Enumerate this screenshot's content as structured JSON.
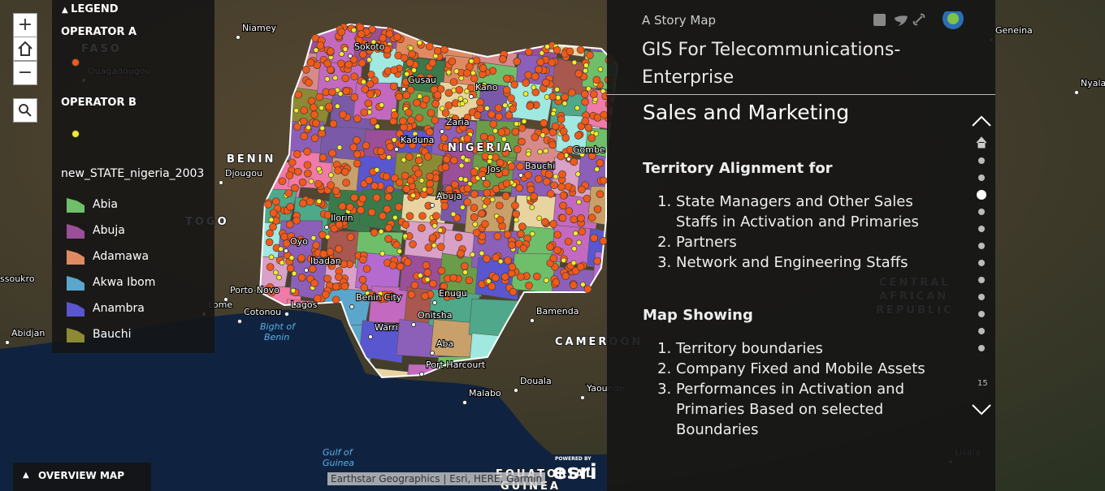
{
  "legend": {
    "header": "LEGEND",
    "operators": [
      {
        "name": "OPERATOR A",
        "color": "#f05a1a"
      },
      {
        "name": "OPERATOR B",
        "color": "#f2ec2a"
      }
    ],
    "layer_name": "new_STATE_nigeria_2003",
    "items": [
      {
        "name": "Abia",
        "color": "#6fbf6a"
      },
      {
        "name": "Abuja",
        "color": "#9a4f98"
      },
      {
        "name": "Adamawa",
        "color": "#e08a62"
      },
      {
        "name": "Akwa Ibom",
        "color": "#5aa6cc"
      },
      {
        "name": "Anambra",
        "color": "#5a56d0"
      },
      {
        "name": "Bauchi",
        "color": "#8c8a34"
      }
    ]
  },
  "map_labels": [
    "Niamey",
    "Sokoto",
    "Gusau",
    "Kano",
    "Zaria",
    "Kaduna",
    "NIGERIA",
    "Gombe",
    "Bauchi",
    "Jos",
    "Abuja",
    "Ilorin",
    "Oyo",
    "Ibadan",
    "Porto-Novo",
    "Cotonou",
    "Lagos",
    "Bight of",
    "Benin",
    "Benin City",
    "Enugu",
    "Onitsha",
    "Warri",
    "Aba",
    "Port Harcourt",
    "Bamenda",
    "CAMEROON",
    "Douala",
    "Yaounde",
    "Malabo",
    "Gulf of",
    "Guinea",
    "BENIN",
    "Djougou",
    "TOGO",
    "Lome",
    "Abidjan",
    "Ouagadougou",
    "FASO",
    "ssoukro",
    "Geneina",
    "Nyala",
    "CENTRAL",
    "AFRICAN",
    "REPUBLIC",
    "Lisala",
    "EQUATORIAL",
    "GUINEA"
  ],
  "overview_button": "OVERVIEW MAP",
  "attribution": "Earthstar Geographics | Esri, HERE, Garmin",
  "esri_logo": {
    "powered": "POWERED BY",
    "brand": "esri"
  },
  "story": {
    "kicker": "A Story Map",
    "title": "GIS For Telecommunications-Enterprise",
    "section_title": "Sales and Marketing",
    "heading_1": "Territory Alignment for",
    "list_1": [
      "State Managers and Other Sales Staffs in Activation and Primaries",
      "Partners",
      "Network and Engineering Staffs"
    ],
    "heading_2": "Map Showing",
    "list_2": [
      "Territory boundaries",
      "Company Fixed and Mobile Assets",
      "Performances in Activation and Primaries Based on selected Boundaries"
    ],
    "nav_count": "15"
  }
}
